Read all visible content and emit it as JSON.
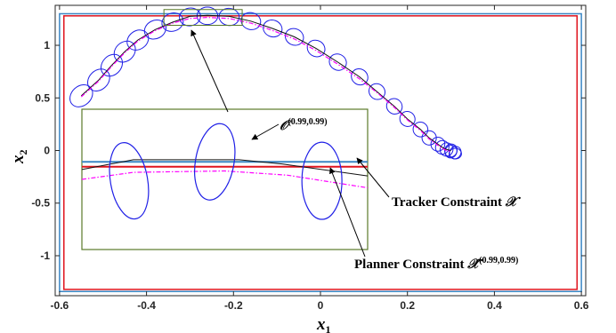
{
  "chart_data": {
    "type": "line",
    "title": "",
    "xlabel": "x",
    "xlabel_sub": "1",
    "ylabel": "x",
    "ylabel_sub": "2",
    "xlim": [
      -0.61,
      0.61
    ],
    "ylim": [
      -1.38,
      1.38
    ],
    "xticks": [
      -0.6,
      -0.4,
      -0.2,
      0,
      0.2,
      0.4,
      0.6
    ],
    "xtick_labels": [
      "-0.6",
      "-0.4",
      "-0.2",
      "0",
      "0.2",
      "0.4",
      "0.6"
    ],
    "yticks": [
      -1,
      -0.5,
      0,
      0.5,
      1
    ],
    "ytick_labels": [
      "-1",
      "-0.5",
      "0",
      "0.5",
      "1"
    ],
    "grid": false,
    "series": [
      {
        "style": "solid-blue-ellipses",
        "color": "#1f1fe6",
        "x": [
          -0.55,
          -0.51,
          -0.48,
          -0.45,
          -0.42,
          -0.38,
          -0.34,
          -0.3,
          -0.26,
          -0.21,
          -0.16,
          -0.11,
          -0.06,
          -0.01,
          0.04,
          0.09,
          0.13,
          0.17,
          0.2,
          0.23,
          0.25,
          0.27,
          0.28,
          0.29,
          0.3,
          0.3,
          0.31,
          0.31
        ],
        "y": [
          0.52,
          0.67,
          0.81,
          0.94,
          1.05,
          1.15,
          1.22,
          1.27,
          1.28,
          1.27,
          1.23,
          1.16,
          1.08,
          0.97,
          0.84,
          0.7,
          0.56,
          0.42,
          0.3,
          0.2,
          0.12,
          0.06,
          0.03,
          0.01,
          0.0,
          -0.01,
          -0.02,
          -0.03
        ]
      },
      {
        "style": "solid-black",
        "color": "#111111",
        "x": [
          -0.55,
          -0.51,
          -0.48,
          -0.45,
          -0.42,
          -0.38,
          -0.34,
          -0.3,
          -0.26,
          -0.21,
          -0.16,
          -0.11,
          -0.06,
          -0.01,
          0.04,
          0.09,
          0.13,
          0.17,
          0.2,
          0.23,
          0.25,
          0.27,
          0.28,
          0.29,
          0.3
        ],
        "y": [
          0.52,
          0.67,
          0.81,
          0.94,
          1.05,
          1.15,
          1.22,
          1.275,
          1.285,
          1.275,
          1.23,
          1.16,
          1.08,
          0.97,
          0.84,
          0.7,
          0.56,
          0.42,
          0.3,
          0.2,
          0.12,
          0.06,
          0.03,
          0.01,
          0.0
        ]
      },
      {
        "style": "dashdot-magenta",
        "color": "#ff00ff",
        "x": [
          -0.55,
          -0.51,
          -0.48,
          -0.45,
          -0.42,
          -0.38,
          -0.34,
          -0.3,
          -0.26,
          -0.21,
          -0.16,
          -0.11,
          -0.06,
          -0.01,
          0.04,
          0.09,
          0.13,
          0.17,
          0.2,
          0.23,
          0.25,
          0.27,
          0.28,
          0.29,
          0.3
        ],
        "y": [
          0.51,
          0.66,
          0.8,
          0.93,
          1.04,
          1.14,
          1.21,
          1.255,
          1.265,
          1.255,
          1.21,
          1.14,
          1.06,
          0.95,
          0.82,
          0.68,
          0.55,
          0.41,
          0.29,
          0.19,
          0.11,
          0.05,
          0.02,
          0.0,
          -0.01
        ]
      }
    ],
    "constraints": [
      {
        "style": "tracker",
        "color": "#3a86c4",
        "xlim": [
          -0.6,
          0.6
        ],
        "ylim": [
          -1.34,
          1.3
        ]
      },
      {
        "style": "planner",
        "color": "#e0141e",
        "xlim": [
          -0.59,
          0.59
        ],
        "ylim": [
          -1.32,
          1.28
        ]
      }
    ],
    "zoom_window": {
      "color": "#5a7a2a",
      "xlim": [
        -0.36,
        -0.18
      ],
      "ylim": [
        1.19,
        1.34
      ]
    },
    "inset": {
      "color": "#5a7a2a",
      "tracker_level": 0.25,
      "planner_level": 0.18,
      "black": [
        [
          0,
          0.14
        ],
        [
          0.18,
          0.28
        ],
        [
          0.55,
          0.28
        ],
        [
          0.7,
          0.22
        ],
        [
          1.0,
          0.05
        ]
      ],
      "magenta": [
        [
          0,
          0.0
        ],
        [
          0.18,
          0.1
        ],
        [
          0.5,
          0.12
        ],
        [
          0.72,
          0.06
        ],
        [
          1.0,
          -0.12
        ]
      ],
      "ellipses": [
        {
          "cx": 0.165,
          "cy": -0.02,
          "rx": 0.13,
          "ry": 0.55,
          "rot": -10
        },
        {
          "cx": 0.465,
          "cy": 0.25,
          "rx": 0.135,
          "ry": 0.55,
          "rot": 10
        },
        {
          "cx": 0.84,
          "cy": -0.02,
          "rx": 0.14,
          "ry": 0.55,
          "rot": 0
        }
      ]
    },
    "annotations": [
      {
        "symbol": "𝒪",
        "sup": "(0.99,0.99)",
        "text": ""
      },
      {
        "symbol": "",
        "sup": "",
        "text": "Tracker Constraint ",
        "trail_symbol": "𝒳"
      },
      {
        "symbol": "",
        "sup": "(0.99,0.99)",
        "text": "Planner Constraint ",
        "trail_symbol": "𝒳̂"
      }
    ]
  }
}
